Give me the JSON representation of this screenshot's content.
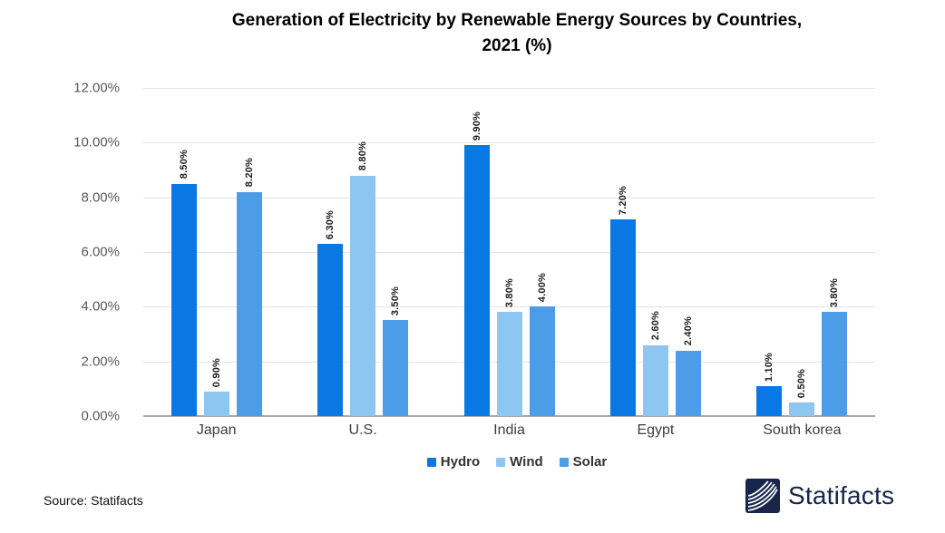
{
  "header": {
    "line1": "Generation of Electricity by Renewable Energy Sources by Countries,",
    "line2": "2021 (%)"
  },
  "chart_data": {
    "type": "bar",
    "title": "Generation of Electricity by Renewable Energy Sources by Countries, 2021 (%)",
    "categories": [
      "Japan",
      "U.S.",
      "India",
      "Egypt",
      "South korea"
    ],
    "series": [
      {
        "name": "Hydro",
        "color": "#0a78e2",
        "values": [
          8.5,
          6.3,
          9.9,
          7.2,
          1.1
        ],
        "labels": [
          "8.50%",
          "6.30%",
          "9.90%",
          "7.20%",
          "1.10%"
        ]
      },
      {
        "name": "Wind",
        "color": "#8dc6f1",
        "values": [
          0.9,
          8.8,
          3.8,
          2.6,
          0.5
        ],
        "labels": [
          "0.90%",
          "8.80%",
          "3.80%",
          "2.60%",
          "0.50%"
        ]
      },
      {
        "name": "Solar",
        "color": "#4d9ce8",
        "values": [
          8.2,
          3.5,
          4.0,
          2.4,
          3.8
        ],
        "labels": [
          "8.20%",
          "3.50%",
          "4.00%",
          "2.40%",
          "3.80%"
        ]
      }
    ],
    "y_ticks": [
      "12.00%",
      "10.00%",
      "8.00%",
      "6.00%",
      "4.00%",
      "2.00%",
      "0.00%"
    ],
    "ylim": [
      0,
      12
    ],
    "grid": true,
    "legend_position": "bottom",
    "colors": {
      "gridline": "#e4e4e4",
      "axis_line": "#a8a8a8",
      "tick_text": "#57585a",
      "brand_navy": "#172649"
    }
  },
  "footer": {
    "source": "Source: Statifacts",
    "brand": "Statifacts"
  }
}
